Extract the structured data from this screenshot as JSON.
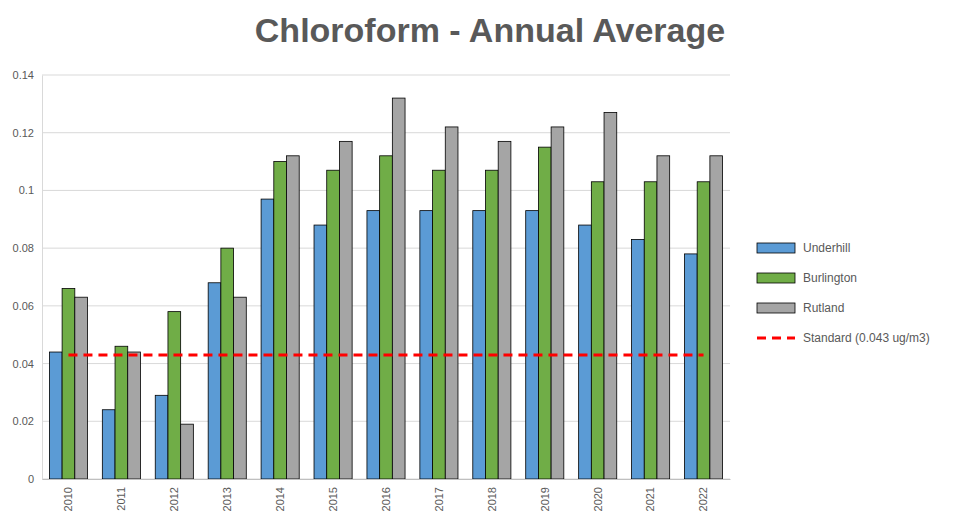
{
  "chart_data": {
    "type": "bar",
    "title": "Chloroform - Annual Average",
    "categories": [
      "2010",
      "2011",
      "2012",
      "2013",
      "2014",
      "2015",
      "2016",
      "2017",
      "2018",
      "2019",
      "2020",
      "2021",
      "2022"
    ],
    "series": [
      {
        "name": "Underhill",
        "color": "#5b9bd5",
        "values": [
          0.044,
          0.024,
          0.029,
          0.068,
          0.097,
          0.088,
          0.093,
          0.093,
          0.093,
          0.093,
          0.088,
          0.083,
          0.078
        ]
      },
      {
        "name": "Burlington",
        "color": "#70ad47",
        "values": [
          0.066,
          0.046,
          0.058,
          0.08,
          0.11,
          0.107,
          0.112,
          0.107,
          0.107,
          0.115,
          0.103,
          0.103,
          0.103
        ]
      },
      {
        "name": "Rutland",
        "color": "#a5a5a5",
        "values": [
          0.063,
          0.044,
          0.019,
          0.063,
          0.112,
          0.117,
          0.132,
          0.122,
          0.117,
          0.122,
          0.127,
          0.112,
          0.112
        ]
      },
      {
        "name": "Standard (0.043 ug/m3)",
        "color": "#ff0000",
        "type": "line",
        "line_style": "dashed",
        "values": [
          0.043,
          0.043,
          0.043,
          0.043,
          0.043,
          0.043,
          0.043,
          0.043,
          0.043,
          0.043,
          0.043,
          0.043,
          0.043
        ]
      }
    ],
    "ylim": [
      0,
      0.14
    ],
    "yticks": [
      0,
      0.02,
      0.04,
      0.06,
      0.08,
      0.1,
      0.12,
      0.14
    ],
    "grid": true,
    "legend": "right"
  }
}
